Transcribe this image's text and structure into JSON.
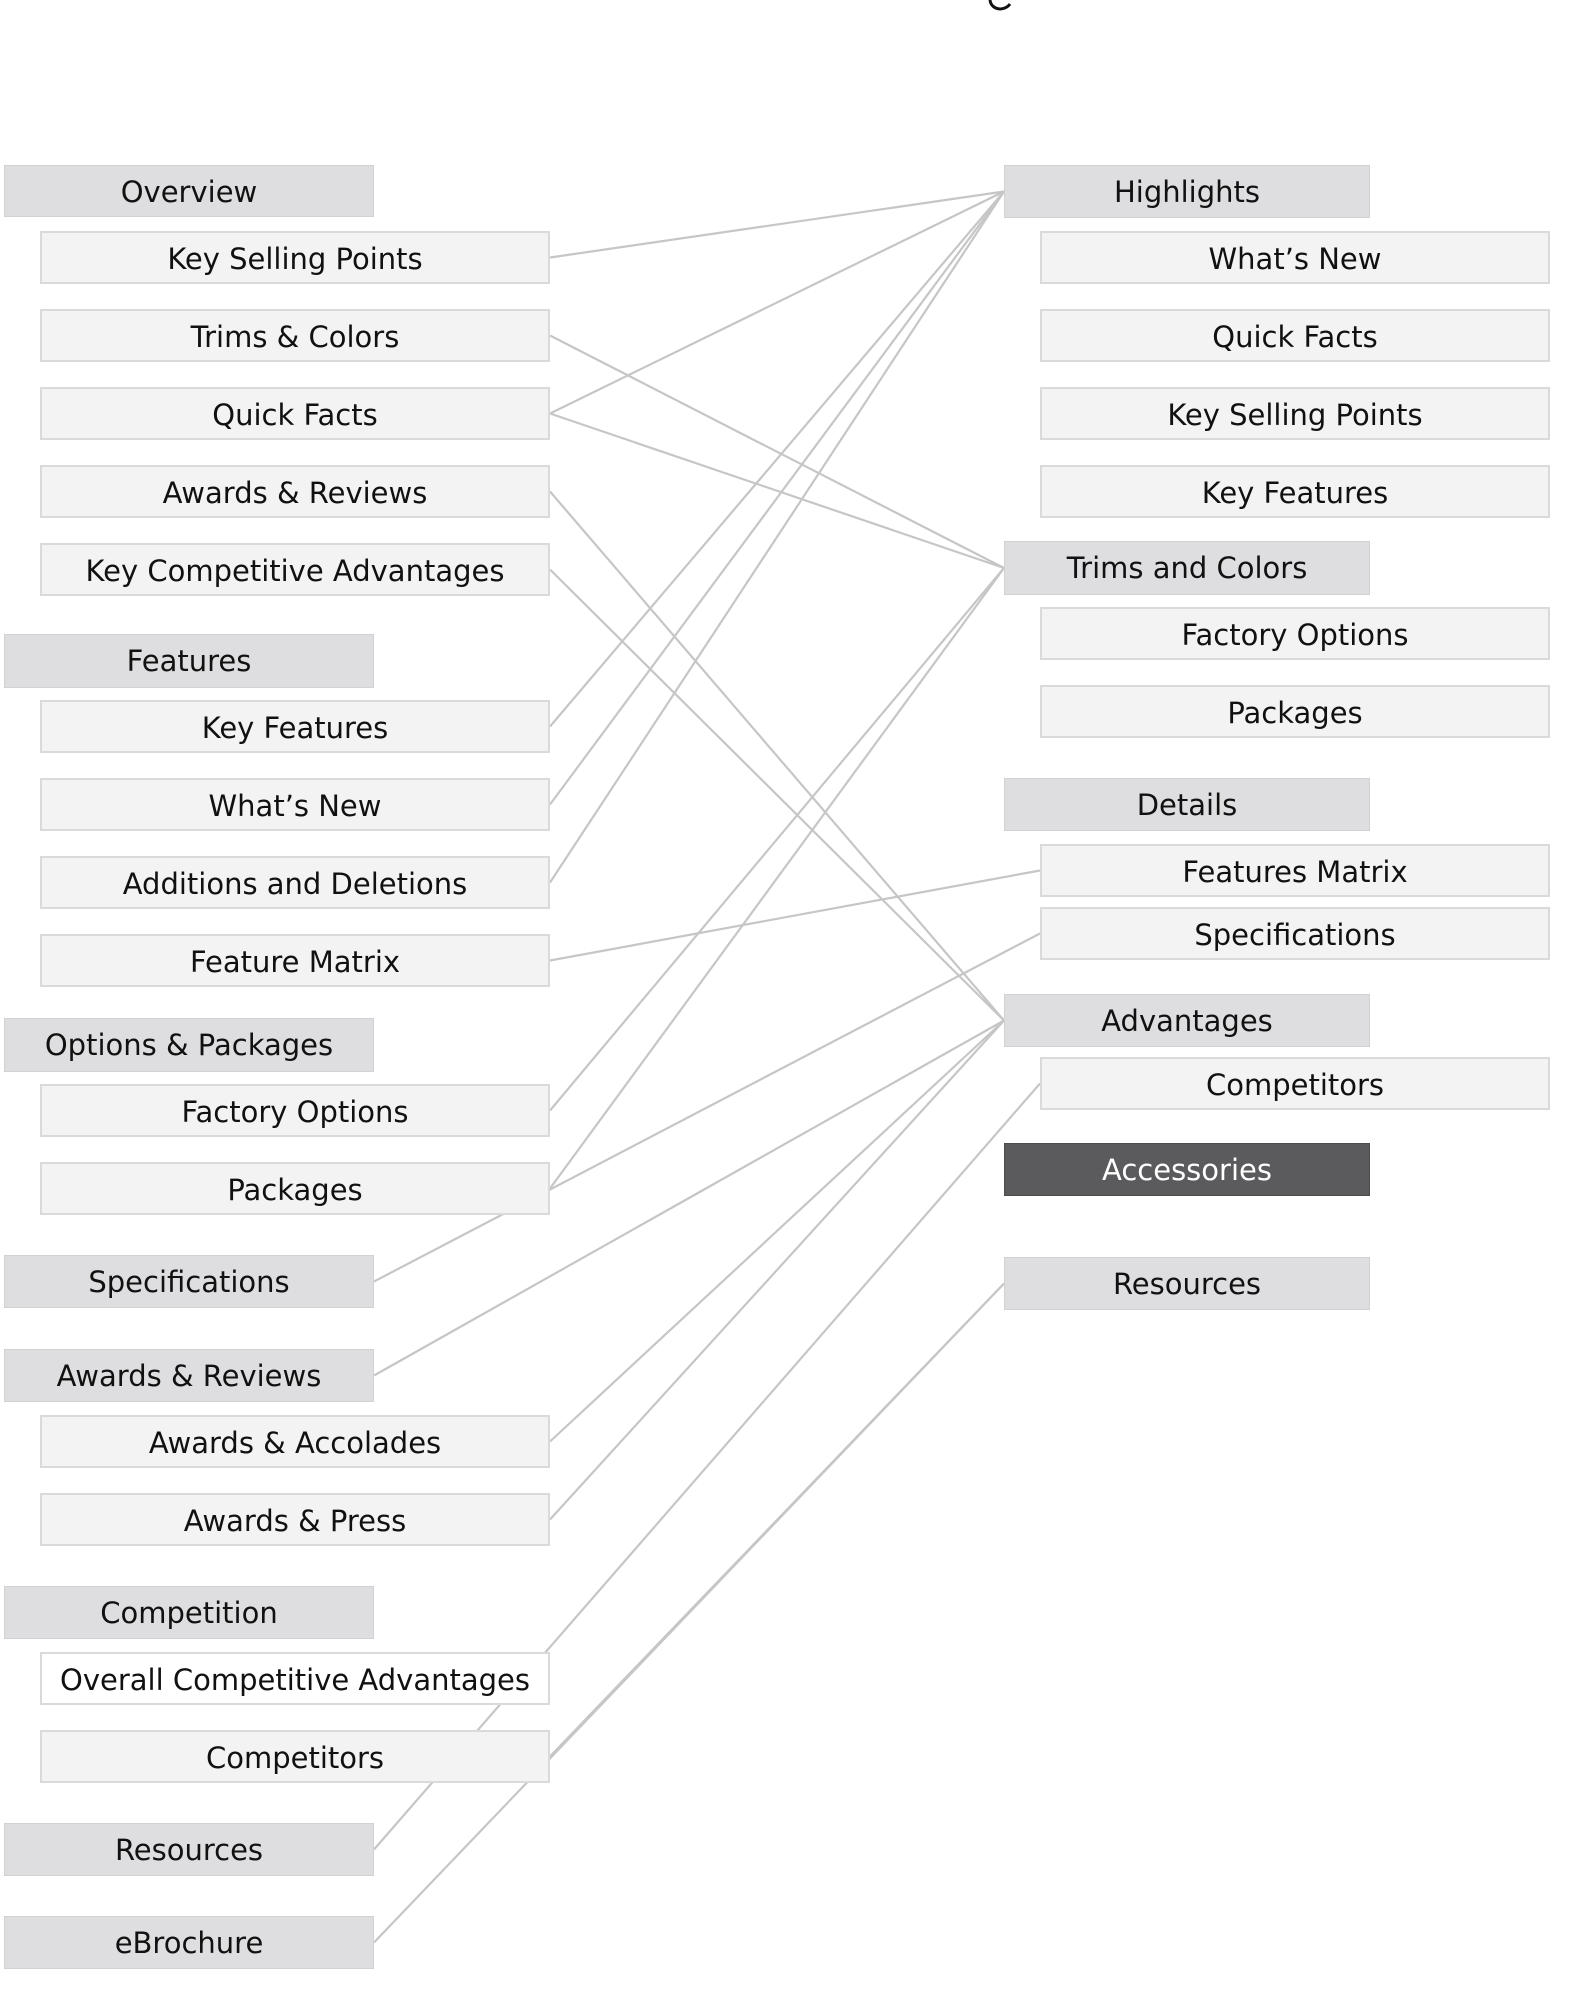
{
  "title": "",
  "left": [
    {
      "id": "L-overview",
      "label": "Overview",
      "kind": "section"
    },
    {
      "id": "L-ksp",
      "label": "Key Selling Points",
      "kind": "child"
    },
    {
      "id": "L-trims",
      "label": "Trims & Colors",
      "kind": "child"
    },
    {
      "id": "L-quick",
      "label": "Quick Facts",
      "kind": "child"
    },
    {
      "id": "L-awards-sub",
      "label": "Awards & Reviews",
      "kind": "child"
    },
    {
      "id": "L-kca",
      "label": "Key Competitive Advantages",
      "kind": "child"
    },
    {
      "id": "L-features",
      "label": "Features",
      "kind": "section"
    },
    {
      "id": "L-keyfeat",
      "label": "Key Features",
      "kind": "child"
    },
    {
      "id": "L-whatsnew",
      "label": "What’s New",
      "kind": "child"
    },
    {
      "id": "L-adddel",
      "label": "Additions and Deletions",
      "kind": "child"
    },
    {
      "id": "L-featmatrix",
      "label": "Feature Matrix",
      "kind": "child"
    },
    {
      "id": "L-optpack",
      "label": "Options & Packages",
      "kind": "section"
    },
    {
      "id": "L-factopt",
      "label": "Factory Options",
      "kind": "child"
    },
    {
      "id": "L-packages",
      "label": "Packages",
      "kind": "child"
    },
    {
      "id": "L-specs",
      "label": "Specifications",
      "kind": "section"
    },
    {
      "id": "L-awards",
      "label": "Awards & Reviews",
      "kind": "section"
    },
    {
      "id": "L-accolades",
      "label": "Awards & Accolades",
      "kind": "child"
    },
    {
      "id": "L-press",
      "label": "Awards & Press",
      "kind": "child"
    },
    {
      "id": "L-competition",
      "label": "Competition",
      "kind": "section"
    },
    {
      "id": "L-oca",
      "label": "Overall Competitive Advantages",
      "kind": "child",
      "plain": true
    },
    {
      "id": "L-competitors",
      "label": "Competitors",
      "kind": "child"
    },
    {
      "id": "L-resources",
      "label": "Resources",
      "kind": "section"
    },
    {
      "id": "L-ebrochure",
      "label": "eBrochure",
      "kind": "section"
    }
  ],
  "right": [
    {
      "id": "R-highlights",
      "label": "Highlights",
      "kind": "section"
    },
    {
      "id": "R-whatsnew",
      "label": "What’s New",
      "kind": "child"
    },
    {
      "id": "R-quick",
      "label": "Quick Facts",
      "kind": "child"
    },
    {
      "id": "R-ksp",
      "label": "Key Selling Points",
      "kind": "child"
    },
    {
      "id": "R-keyfeat",
      "label": "Key Features",
      "kind": "child"
    },
    {
      "id": "R-trims",
      "label": "Trims and Colors",
      "kind": "section"
    },
    {
      "id": "R-factopt",
      "label": "Factory Options",
      "kind": "child"
    },
    {
      "id": "R-packages",
      "label": "Packages",
      "kind": "child"
    },
    {
      "id": "R-details",
      "label": "Details",
      "kind": "section"
    },
    {
      "id": "R-featmatrix",
      "label": "Features Matrix",
      "kind": "child"
    },
    {
      "id": "R-specs",
      "label": "Specifications",
      "kind": "child"
    },
    {
      "id": "R-advantages",
      "label": "Advantages",
      "kind": "section"
    },
    {
      "id": "R-competitors",
      "label": "Competitors",
      "kind": "child"
    },
    {
      "id": "R-accessories",
      "label": "Accessories",
      "kind": "section",
      "highlighted": true
    },
    {
      "id": "R-resources",
      "label": "Resources",
      "kind": "section"
    }
  ],
  "connections": [
    [
      "L-ksp",
      "R-highlights"
    ],
    [
      "L-quick",
      "R-highlights"
    ],
    [
      "L-keyfeat",
      "R-highlights"
    ],
    [
      "L-whatsnew",
      "R-highlights"
    ],
    [
      "L-adddel",
      "R-highlights"
    ],
    [
      "L-trims",
      "R-trims"
    ],
    [
      "L-quick",
      "R-trims"
    ],
    [
      "L-factopt",
      "R-trims"
    ],
    [
      "L-packages",
      "R-trims"
    ],
    [
      "L-featmatrix",
      "R-featmatrix"
    ],
    [
      "L-specs",
      "R-specs"
    ],
    [
      "L-awards-sub",
      "R-advantages"
    ],
    [
      "L-kca",
      "R-advantages"
    ],
    [
      "L-awards",
      "R-advantages"
    ],
    [
      "L-accolades",
      "R-advantages"
    ],
    [
      "L-press",
      "R-advantages"
    ],
    [
      "L-resources",
      "R-competitors"
    ],
    [
      "L-competitors",
      "R-resources"
    ],
    [
      "L-ebrochure",
      "R-resources"
    ]
  ]
}
